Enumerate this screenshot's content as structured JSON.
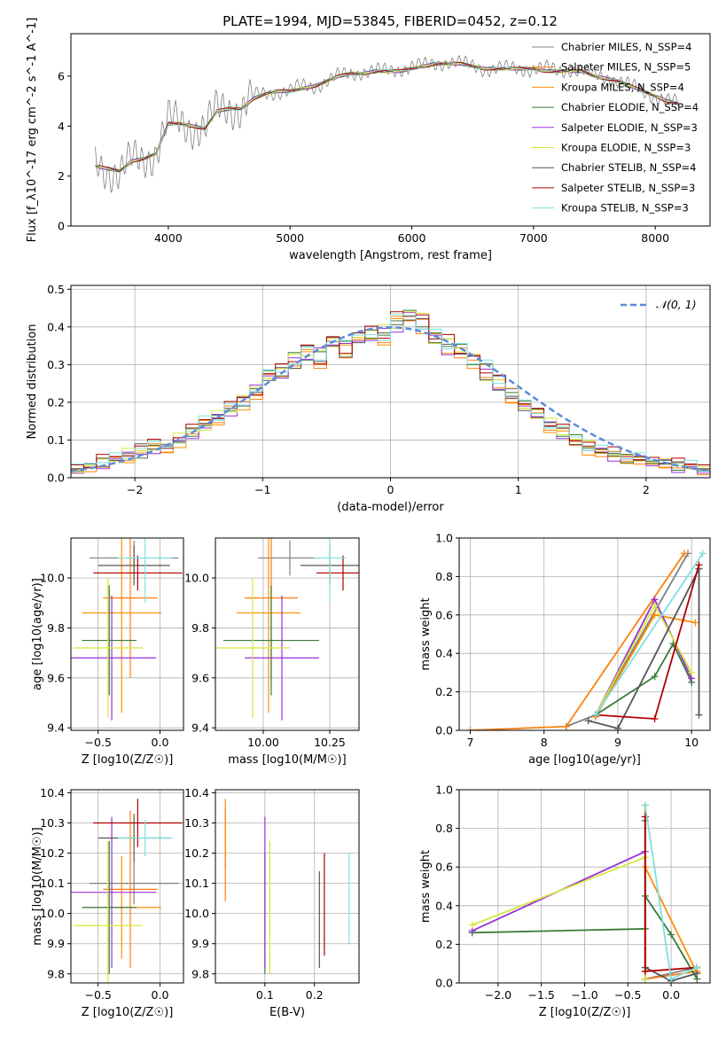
{
  "figure_title": "PLATE=1994, MJD=53845, FIBERID=0452, z=0.12",
  "series_colors": [
    "#808080",
    "#ff7f0e",
    "#ff8c00",
    "#3a7a3a",
    "#9b30d9",
    "#d4e83a",
    "#555555",
    "#b00000",
    "#7fe0e0"
  ],
  "chart_data": [
    {
      "id": "spectrum",
      "type": "line",
      "xlabel": "wavelength [Angstrom, rest frame]",
      "ylabel": "Flux [f_λ10^-17 erg cm^-2 s^-1 A^-1]",
      "xlim": [
        3200,
        8450
      ],
      "ylim": [
        0,
        7.7
      ],
      "xticks": [
        4000,
        5000,
        6000,
        7000,
        8000
      ],
      "xticklabels": [
        "4000",
        "5000",
        "6000",
        "7000",
        "8000"
      ],
      "yticks": [
        0,
        2,
        4,
        6
      ],
      "yticklabels": [
        "0",
        "2",
        "4",
        "6"
      ],
      "grid": false,
      "legend_loc": "right",
      "data_x": [
        3400,
        3500,
        3600,
        3700,
        3800,
        3900,
        4000,
        4100,
        4200,
        4300,
        4400,
        4500,
        4600,
        4700,
        4800,
        4900,
        5000,
        5100,
        5200,
        5300,
        5400,
        5500,
        5600,
        5700,
        5800,
        5900,
        6000,
        6100,
        6200,
        6300,
        6400,
        6500,
        6600,
        6700,
        6800,
        6900,
        7000,
        7100,
        7200,
        7300,
        7400,
        7500,
        7600,
        7700,
        7800,
        7900,
        8000,
        8100,
        8200
      ],
      "data_y": [
        2.5,
        2.3,
        2.1,
        2.6,
        2.7,
        3.0,
        4.2,
        4.1,
        4.0,
        3.9,
        4.6,
        4.8,
        4.7,
        5.2,
        5.3,
        5.4,
        5.4,
        5.6,
        5.6,
        5.8,
        6.0,
        6.1,
        6.2,
        6.2,
        6.2,
        6.3,
        6.4,
        6.4,
        6.5,
        6.6,
        6.5,
        6.4,
        6.3,
        6.3,
        6.3,
        6.3,
        6.3,
        6.3,
        6.2,
        6.3,
        6.2,
        6.0,
        6.0,
        5.8,
        5.6,
        5.4,
        5.2,
        5.0,
        4.9
      ],
      "model_y": [
        2.4,
        2.3,
        2.2,
        2.6,
        2.7,
        2.9,
        4.1,
        4.1,
        4.0,
        3.9,
        4.6,
        4.7,
        4.7,
        5.1,
        5.3,
        5.4,
        5.4,
        5.5,
        5.6,
        5.8,
        6.0,
        6.1,
        6.1,
        6.2,
        6.2,
        6.2,
        6.3,
        6.4,
        6.5,
        6.5,
        6.5,
        6.4,
        6.3,
        6.3,
        6.3,
        6.3,
        6.3,
        6.2,
        6.2,
        6.2,
        6.2,
        6.0,
        5.9,
        5.8,
        5.6,
        5.4,
        5.2,
        5.0,
        4.9
      ],
      "legend": [
        "Chabrier MILES, N_SSP=4",
        "Salpeter MILES, N_SSP=5",
        "Kroupa MILES, N_SSP=4",
        "Chabrier ELODIE, N_SSP=4",
        "Salpeter ELODIE, N_SSP=3",
        "Kroupa ELODIE, N_SSP=3",
        "Chabrier STELIB, N_SSP=4",
        "Salpeter STELIB, N_SSP=3",
        "Kroupa STELIB, N_SSP=3"
      ]
    },
    {
      "id": "residuals",
      "type": "line",
      "xlabel": "(data-model)/error",
      "ylabel": "Normed distribution",
      "xlim": [
        -2.5,
        2.5
      ],
      "ylim": [
        0,
        0.51
      ],
      "xticks": [
        -2,
        -1,
        0,
        1,
        2
      ],
      "xticklabels": [
        "−2",
        "−1",
        "0",
        "1",
        "2"
      ],
      "yticks": [
        0,
        0.1,
        0.2,
        0.3,
        0.4,
        0.5
      ],
      "yticklabels": [
        "0.0",
        "0.1",
        "0.2",
        "0.3",
        "0.4",
        "0.5"
      ],
      "grid": true,
      "legend_loc": "top-right",
      "legend": [
        "𝒩(0, 1)"
      ],
      "hist_centers": [
        -2.45,
        -2.35,
        -2.25,
        -2.15,
        -2.05,
        -1.95,
        -1.85,
        -1.75,
        -1.65,
        -1.55,
        -1.45,
        -1.35,
        -1.25,
        -1.15,
        -1.05,
        -0.95,
        -0.85,
        -0.75,
        -0.65,
        -0.55,
        -0.45,
        -0.35,
        -0.25,
        -0.15,
        -0.05,
        0.05,
        0.15,
        0.25,
        0.35,
        0.45,
        0.55,
        0.65,
        0.75,
        0.85,
        0.95,
        1.05,
        1.15,
        1.25,
        1.35,
        1.45,
        1.55,
        1.65,
        1.75,
        1.85,
        1.95,
        2.05,
        2.15,
        2.25,
        2.35,
        2.45
      ],
      "hist_values": [
        0.02,
        0.03,
        0.04,
        0.05,
        0.06,
        0.07,
        0.08,
        0.08,
        0.1,
        0.12,
        0.14,
        0.16,
        0.18,
        0.2,
        0.23,
        0.27,
        0.28,
        0.31,
        0.33,
        0.32,
        0.36,
        0.34,
        0.37,
        0.38,
        0.38,
        0.41,
        0.43,
        0.41,
        0.37,
        0.35,
        0.34,
        0.31,
        0.28,
        0.25,
        0.22,
        0.19,
        0.17,
        0.14,
        0.12,
        0.1,
        0.08,
        0.07,
        0.06,
        0.05,
        0.05,
        0.04,
        0.04,
        0.03,
        0.03,
        0.02
      ],
      "hist_jitter": [
        [
          0.0,
          0.01,
          -0.01,
          0.01,
          0.0,
          -0.02,
          0.01,
          0.0,
          0.01,
          -0.01,
          0.0,
          0.01,
          0.0,
          -0.01,
          0.01,
          0.02,
          -0.01,
          0.03,
          -0.02,
          0.02,
          -0.01,
          0.03,
          0.02,
          -0.01,
          0.0,
          0.01,
          0.02,
          -0.01,
          0.02,
          0.0,
          0.02,
          -0.01,
          0.03,
          -0.02,
          0.01,
          0.02,
          -0.01,
          0.01,
          -0.01,
          0.02,
          0.0,
          0.01,
          0.0,
          -0.01,
          0.01,
          0.0,
          0.01,
          -0.01,
          0.01,
          0.0
        ],
        [
          0.01,
          -0.01,
          0.02,
          0.0,
          -0.01,
          0.01,
          0.02,
          -0.01,
          0.0,
          0.02,
          0.01,
          -0.01,
          0.02,
          0.01,
          -0.02,
          0.0,
          0.02,
          -0.01,
          0.02,
          -0.03,
          0.01,
          -0.02,
          0.01,
          0.02,
          -0.02,
          0.03,
          -0.01,
          0.02,
          -0.01,
          0.03,
          -0.02,
          0.01,
          -0.01,
          0.02,
          -0.02,
          0.0,
          0.01,
          -0.01,
          0.02,
          -0.01,
          0.01,
          -0.01,
          0.02,
          0.0,
          -0.01,
          0.01,
          -0.01,
          0.02,
          0.0,
          0.01
        ],
        [
          -0.01,
          0.0,
          0.01,
          -0.01,
          0.02,
          0.0,
          -0.01,
          0.01,
          0.02,
          0.0,
          -0.02,
          0.02,
          -0.01,
          0.02,
          0.01,
          -0.01,
          0.01,
          0.02,
          -0.01,
          0.02,
          0.01,
          -0.02,
          0.0,
          0.01,
          0.03,
          -0.02,
          0.01,
          0.03,
          -0.02,
          0.02,
          -0.01,
          0.02,
          -0.03,
          0.01,
          0.02,
          -0.01,
          0.01,
          0.02,
          -0.01,
          0.0,
          0.02,
          -0.01,
          0.0,
          0.01,
          -0.01,
          0.0,
          0.01,
          0.0,
          -0.01,
          0.01
        ]
      ]
    },
    {
      "id": "age-vs-z",
      "type": "scatter",
      "xlabel": "Z [log10(Z/Z☉)]",
      "ylabel": "age [log10(age/yr)]",
      "xlim": [
        -0.72,
        0.19
      ],
      "ylim": [
        9.39,
        10.16
      ],
      "xticks": [
        -0.5,
        0.0
      ],
      "xticklabels": [
        "−0.5",
        "0.0"
      ],
      "yticks": [
        9.4,
        9.6,
        9.8,
        10.0
      ],
      "yticklabels": [
        "9.4",
        "9.6",
        "9.8",
        "10.0"
      ],
      "grid": true,
      "points": [
        {
          "x": -0.21,
          "y": 10.08,
          "xerr": 0.36,
          "yerr": 0.07
        },
        {
          "x": -0.24,
          "y": 9.92,
          "xerr": 0.22,
          "yerr": 0.32
        },
        {
          "x": -0.31,
          "y": 9.86,
          "xerr": 0.32,
          "yerr": 0.4
        },
        {
          "x": -0.41,
          "y": 9.75,
          "xerr": 0.22,
          "yerr": 0.22
        },
        {
          "x": -0.39,
          "y": 9.68,
          "xerr": 0.36,
          "yerr": 0.25
        },
        {
          "x": -0.42,
          "y": 9.72,
          "xerr": 0.28,
          "yerr": 0.28
        },
        {
          "x": -0.21,
          "y": 10.05,
          "xerr": 0.29,
          "yerr": 0.08
        },
        {
          "x": -0.18,
          "y": 10.02,
          "xerr": 0.36,
          "yerr": 0.07
        },
        {
          "x": -0.12,
          "y": 10.08,
          "xerr": 0.22,
          "yerr": 0.18
        }
      ]
    },
    {
      "id": "age-vs-mass",
      "type": "scatter",
      "xlabel": "mass [log10(M/M☉)]",
      "ylabel": "",
      "xlim": [
        9.82,
        10.36
      ],
      "ylim": [
        9.39,
        10.16
      ],
      "xticks": [
        10.0,
        10.25
      ],
      "xticklabels": [
        "10.00",
        "10.25"
      ],
      "yticks": [
        9.4,
        9.6,
        9.8,
        10.0
      ],
      "yticklabels": [
        "9.4",
        "9.6",
        "9.8",
        "10.0"
      ],
      "grid": true,
      "points": [
        {
          "x": 10.1,
          "y": 10.08,
          "xerr": 0.12,
          "yerr": 0.07
        },
        {
          "x": 10.03,
          "y": 9.92,
          "xerr": 0.1,
          "yerr": 0.32
        },
        {
          "x": 10.02,
          "y": 9.86,
          "xerr": 0.12,
          "yerr": 0.4
        },
        {
          "x": 10.03,
          "y": 9.75,
          "xerr": 0.18,
          "yerr": 0.22
        },
        {
          "x": 10.07,
          "y": 9.68,
          "xerr": 0.14,
          "yerr": 0.25
        },
        {
          "x": 9.96,
          "y": 9.72,
          "xerr": 0.14,
          "yerr": 0.28
        },
        {
          "x": 10.25,
          "y": 10.05,
          "xerr": 0.11,
          "yerr": 0.08
        },
        {
          "x": 10.3,
          "y": 10.02,
          "xerr": 0.1,
          "yerr": 0.07
        },
        {
          "x": 10.25,
          "y": 10.08,
          "xerr": 0.06,
          "yerr": 0.18
        }
      ]
    },
    {
      "id": "mass-weight-vs-age",
      "type": "line",
      "xlabel": "age [log10(age/yr)]",
      "ylabel": "mass weight",
      "xlim": [
        6.85,
        10.25
      ],
      "ylim": [
        0,
        1.0
      ],
      "xticks": [
        7,
        8,
        9,
        10
      ],
      "xticklabels": [
        "7",
        "8",
        "9",
        "10"
      ],
      "yticks": [
        0,
        0.2,
        0.4,
        0.6,
        0.8,
        1.0
      ],
      "yticklabels": [
        "0.0",
        "0.2",
        "0.4",
        "0.6",
        "0.8",
        "1.0"
      ],
      "grid": true,
      "series": [
        {
          "x": [
            8.3,
            8.7,
            9.95
          ],
          "y": [
            0.02,
            0.08,
            0.92
          ]
        },
        {
          "x": [
            7.0,
            8.3,
            9.9
          ],
          "y": [
            0.0,
            0.02,
            0.92
          ]
        },
        {
          "x": [
            8.7,
            9.5,
            10.05
          ],
          "y": [
            0.07,
            0.6,
            0.56
          ]
        },
        {
          "x": [
            8.7,
            9.5,
            9.75,
            10.0
          ],
          "y": [
            0.08,
            0.28,
            0.45,
            0.25
          ]
        },
        {
          "x": [
            8.7,
            9.5,
            10.0
          ],
          "y": [
            0.08,
            0.68,
            0.27
          ]
        },
        {
          "x": [
            8.7,
            9.5,
            10.0
          ],
          "y": [
            0.08,
            0.65,
            0.3
          ]
        },
        {
          "x": [
            8.6,
            9.0,
            10.1,
            10.1
          ],
          "y": [
            0.05,
            0.01,
            0.84,
            0.08
          ]
        },
        {
          "x": [
            8.7,
            9.5,
            10.1
          ],
          "y": [
            0.08,
            0.06,
            0.86
          ]
        },
        {
          "x": [
            8.7,
            10.15
          ],
          "y": [
            0.08,
            0.92
          ]
        }
      ]
    },
    {
      "id": "mass-vs-z",
      "type": "scatter",
      "xlabel": "Z [log10(Z/Z☉)]",
      "ylabel": "mass [log10(M/M☉)]",
      "xlim": [
        -0.72,
        0.19
      ],
      "ylim": [
        9.77,
        10.41
      ],
      "xticks": [
        -0.5,
        0.0
      ],
      "xticklabels": [
        "−0.5",
        "0.0"
      ],
      "yticks": [
        9.8,
        9.9,
        10.0,
        10.1,
        10.2,
        10.3,
        10.4
      ],
      "yticklabels": [
        "9.8",
        "9.9",
        "10.0",
        "10.1",
        "10.2",
        "10.3",
        "10.4"
      ],
      "grid": true,
      "points": [
        {
          "x": -0.21,
          "y": 10.1,
          "xerr": 0.36,
          "yerr": 0.07
        },
        {
          "x": -0.24,
          "y": 10.08,
          "xerr": 0.22,
          "yerr": 0.26
        },
        {
          "x": -0.31,
          "y": 10.02,
          "xerr": 0.32,
          "yerr": 0.17
        },
        {
          "x": -0.41,
          "y": 10.02,
          "xerr": 0.22,
          "yerr": 0.22
        },
        {
          "x": -0.39,
          "y": 10.07,
          "xerr": 0.36,
          "yerr": 0.25
        },
        {
          "x": -0.42,
          "y": 9.96,
          "xerr": 0.28,
          "yerr": 0.28
        },
        {
          "x": -0.21,
          "y": 10.25,
          "xerr": 0.29,
          "yerr": 0.08
        },
        {
          "x": -0.18,
          "y": 10.3,
          "xerr": 0.36,
          "yerr": 0.08
        },
        {
          "x": -0.12,
          "y": 10.25,
          "xerr": 0.22,
          "yerr": 0.06
        }
      ]
    },
    {
      "id": "mass-vs-ebv",
      "type": "scatter",
      "xlabel": "E(B-V)",
      "ylabel": "",
      "xlim": [
        0.0,
        0.29
      ],
      "ylim": [
        9.77,
        10.41
      ],
      "xticks": [
        0.1,
        0.2
      ],
      "xticklabels": [
        "0.1",
        "0.2"
      ],
      "yticks": [
        9.8,
        9.9,
        10.0,
        10.1,
        10.2,
        10.3,
        10.4
      ],
      "yticklabels": [
        "9.8",
        "9.9",
        "10.0",
        "10.1",
        "10.2",
        "10.3",
        "10.4"
      ],
      "grid": true,
      "points": [
        {
          "x": 0.02,
          "y": 10.25,
          "yerr": 0.1
        },
        {
          "x": 0.02,
          "y": 10.18,
          "yerr": 0.14
        },
        {
          "x": 0.02,
          "y": 10.28,
          "yerr": 0.1
        },
        {
          "x": 0.1,
          "y": 10.0,
          "yerr": 0.2
        },
        {
          "x": 0.1,
          "y": 10.07,
          "yerr": 0.25
        },
        {
          "x": 0.11,
          "y": 10.02,
          "yerr": 0.22
        },
        {
          "x": 0.21,
          "y": 9.98,
          "yerr": 0.16
        },
        {
          "x": 0.22,
          "y": 10.03,
          "yerr": 0.17
        },
        {
          "x": 0.27,
          "y": 10.05,
          "yerr": 0.15
        }
      ]
    },
    {
      "id": "mass-weight-vs-z",
      "type": "line",
      "xlabel": "Z [log10(Z/Z☉)]",
      "ylabel": "mass weight",
      "xlim": [
        -2.45,
        0.45
      ],
      "ylim": [
        0,
        1.0
      ],
      "xticks": [
        -2.0,
        -1.5,
        -1.0,
        -0.5,
        0.0
      ],
      "xticklabels": [
        "−2.0",
        "−1.5",
        "−1.0",
        "−0.5",
        "0.0"
      ],
      "yticks": [
        0,
        0.2,
        0.4,
        0.6,
        0.8,
        1.0
      ],
      "yticklabels": [
        "0.0",
        "0.2",
        "0.4",
        "0.6",
        "0.8",
        "1.0"
      ],
      "grid": true,
      "series": [
        {
          "x": [
            -0.3,
            0.3
          ],
          "y": [
            0.02,
            0.08
          ]
        },
        {
          "x": [
            -0.3,
            -0.3,
            0.3
          ],
          "y": [
            0.92,
            0.02,
            0.06
          ]
        },
        {
          "x": [
            -0.3,
            0.3,
            0.3
          ],
          "y": [
            0.6,
            0.05,
            0.08
          ]
        },
        {
          "x": [
            -2.3,
            -0.3,
            -0.3,
            0.0,
            0.3
          ],
          "y": [
            0.26,
            0.28,
            0.45,
            0.25,
            0.02
          ]
        },
        {
          "x": [
            -2.3,
            -0.3,
            -0.3
          ],
          "y": [
            0.27,
            0.68,
            0.02
          ]
        },
        {
          "x": [
            -2.3,
            -0.3,
            -0.3
          ],
          "y": [
            0.3,
            0.65,
            0.02
          ]
        },
        {
          "x": [
            -0.3,
            -0.3,
            0.0,
            0.3
          ],
          "y": [
            0.84,
            0.08,
            0.01,
            0.05
          ]
        },
        {
          "x": [
            -0.3,
            -0.3,
            0.3
          ],
          "y": [
            0.86,
            0.06,
            0.08
          ]
        },
        {
          "x": [
            -0.3,
            0.0,
            0.3
          ],
          "y": [
            0.92,
            0.02,
            0.08
          ]
        }
      ]
    }
  ]
}
